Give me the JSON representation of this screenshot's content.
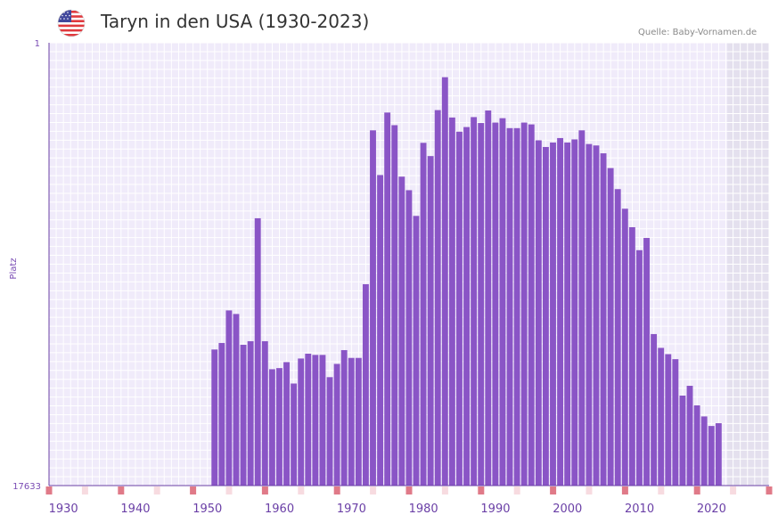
{
  "header": {
    "title": "Taryn in den USA (1930-2023)",
    "source": "Quelle: Baby-Vornamen.de",
    "flag_icon": "us-flag-icon"
  },
  "colors": {
    "bar": "#8a55c6",
    "grid_bg": "#f0ebfa",
    "grid_line": "#ffffff",
    "future_bg": "#e4e0ee",
    "axis": "#6a3fa6",
    "marker_strong": "#e07a88",
    "marker_light": "#f7dbe0"
  },
  "chart_data": {
    "type": "bar",
    "title": "Taryn in den USA (1930-2023)",
    "xlabel": "",
    "ylabel": "Platz",
    "y_axis_inverted": true,
    "ylim": [
      1,
      17633
    ],
    "y_tick_labels": [
      "1",
      "17633"
    ],
    "x_tick_labels": [
      "1930",
      "1940",
      "1950",
      "1960",
      "1970",
      "1980",
      "1990",
      "2000",
      "2010",
      "2020"
    ],
    "x_range": [
      1928,
      2028
    ],
    "categories": [
      1951,
      1952,
      1953,
      1954,
      1955,
      1956,
      1957,
      1958,
      1959,
      1960,
      1961,
      1962,
      1963,
      1964,
      1965,
      1966,
      1967,
      1968,
      1969,
      1970,
      1971,
      1972,
      1973,
      1974,
      1975,
      1976,
      1977,
      1978,
      1979,
      1980,
      1981,
      1982,
      1983,
      1984,
      1985,
      1986,
      1987,
      1988,
      1989,
      1990,
      1991,
      1992,
      1993,
      1994,
      1995,
      1996,
      1997,
      1998,
      1999,
      2000,
      2001,
      2002,
      2003,
      2004,
      2005,
      2006,
      2007,
      2008,
      2009,
      2010,
      2011,
      2012,
      2013,
      2014,
      2015,
      2016,
      2017,
      2018,
      2019,
      2020,
      2021
    ],
    "values": [
      12215,
      11955,
      10658,
      10800,
      12026,
      11884,
      6988,
      11884,
      13000,
      12955,
      12717,
      13570,
      12574,
      12381,
      12430,
      12430,
      13316,
      12788,
      12240,
      12550,
      12550,
      9615,
      3488,
      5268,
      2779,
      3282,
      5331,
      5871,
      6895,
      3985,
      4512,
      2682,
      1372,
      2977,
      3540,
      3357,
      2961,
      3196,
      2697,
      3178,
      3004,
      3400,
      3400,
      3178,
      3251,
      3884,
      4151,
      3973,
      3795,
      3973,
      3849,
      3488,
      4033,
      4090,
      4403,
      4990,
      5828,
      6609,
      7345,
      8260,
      7772,
      11600,
      12150,
      12400,
      12600,
      14050,
      13660,
      14440,
      14880,
      15260,
      15150
    ]
  },
  "marker_years": {
    "strong": [
      1928,
      1938,
      1948,
      1958,
      1968,
      1978,
      1988,
      1998,
      2008,
      2018,
      2028
    ],
    "light": [
      1933,
      1943,
      1953,
      1963,
      1973,
      1983,
      1993,
      2003,
      2013,
      2023
    ]
  }
}
